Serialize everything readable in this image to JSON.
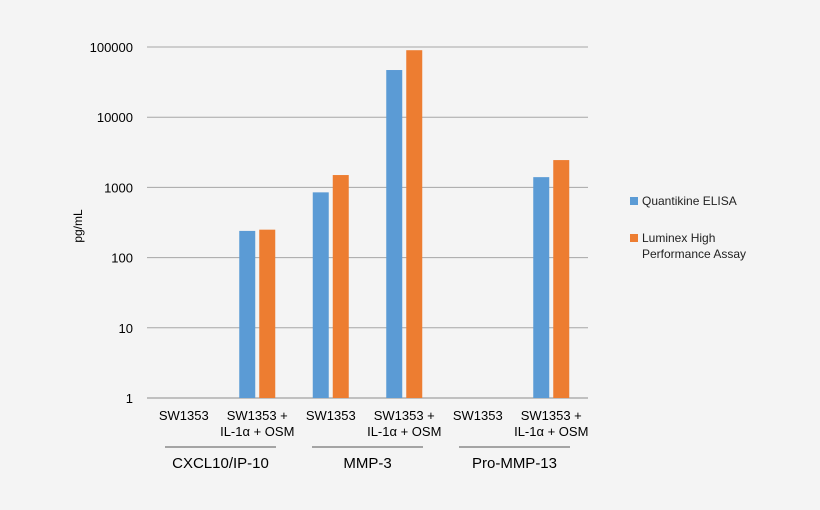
{
  "chart_data": {
    "type": "bar",
    "ylabel": "pg/mL",
    "yscale": "log",
    "ylim": [
      1,
      100000
    ],
    "yticks": [
      "1",
      "10",
      "100",
      "1000",
      "10000",
      "100000"
    ],
    "grid": true,
    "legend_position": "right",
    "groups": [
      {
        "label": "CXCL10/IP-10",
        "categories": [
          [
            "SW1353"
          ],
          [
            "SW1353 +",
            "IL-1α + OSM"
          ]
        ]
      },
      {
        "label": "MMP-3",
        "categories": [
          [
            "SW1353"
          ],
          [
            "SW1353 +",
            "IL-1α + OSM"
          ]
        ]
      },
      {
        "label": "Pro-MMP-13",
        "categories": [
          [
            "SW1353"
          ],
          [
            "SW1353 +",
            "IL-1α + OSM"
          ]
        ]
      }
    ],
    "series": [
      {
        "name": "Quantikine ELISA",
        "color": "#5b9bd5",
        "values": [
          null,
          240,
          850,
          47000,
          null,
          1400
        ]
      },
      {
        "name": "Luminex High Performance Assay",
        "legend_lines": [
          "Luminex High",
          "Performance Assay"
        ],
        "color": "#ed7d31",
        "values": [
          null,
          250,
          1500,
          90000,
          null,
          2450
        ]
      }
    ]
  }
}
